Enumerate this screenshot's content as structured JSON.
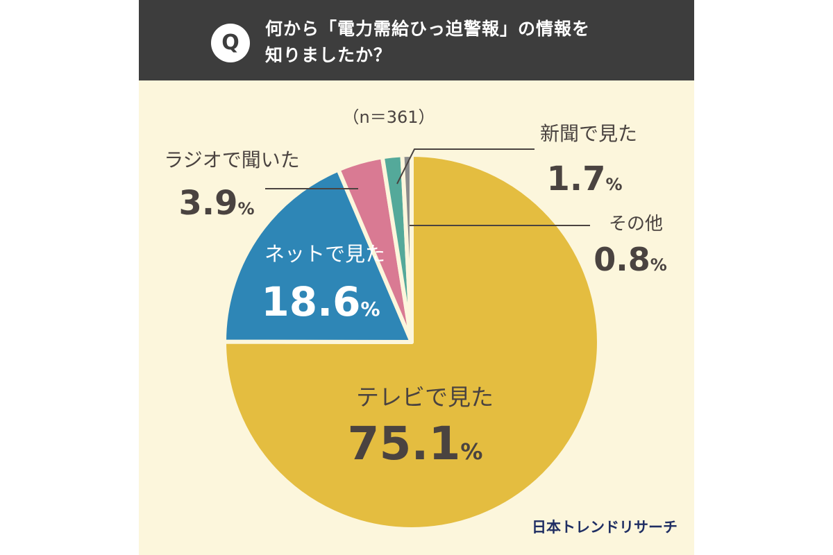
{
  "header": {
    "q": "Q",
    "question_line1": "何から「電力需給ひっ迫警報」の情報を",
    "question_line2": "知りましたか？"
  },
  "chart_data": {
    "type": "pie",
    "sample_size_label": "（n＝361）",
    "start_angle_deg": 0,
    "direction": "clockwise",
    "slices": [
      {
        "label": "テレビで見た",
        "value": 75.1,
        "value_text": "75.1",
        "color": "#e4bd40"
      },
      {
        "label": "ネットで見た",
        "value": 18.6,
        "value_text": "18.6",
        "color": "#2e86b6"
      },
      {
        "label": "ラジオで聞いた",
        "value": 3.9,
        "value_text": "3.9",
        "color": "#d97a93"
      },
      {
        "label": "新聞で見た",
        "value": 1.7,
        "value_text": "1.7",
        "color": "#54a99a"
      },
      {
        "label": "その他",
        "value": 0.8,
        "value_text": "0.8",
        "color": "#8b8b8b"
      }
    ],
    "unit": "%"
  },
  "brand": "日本トレンドリサーチ"
}
